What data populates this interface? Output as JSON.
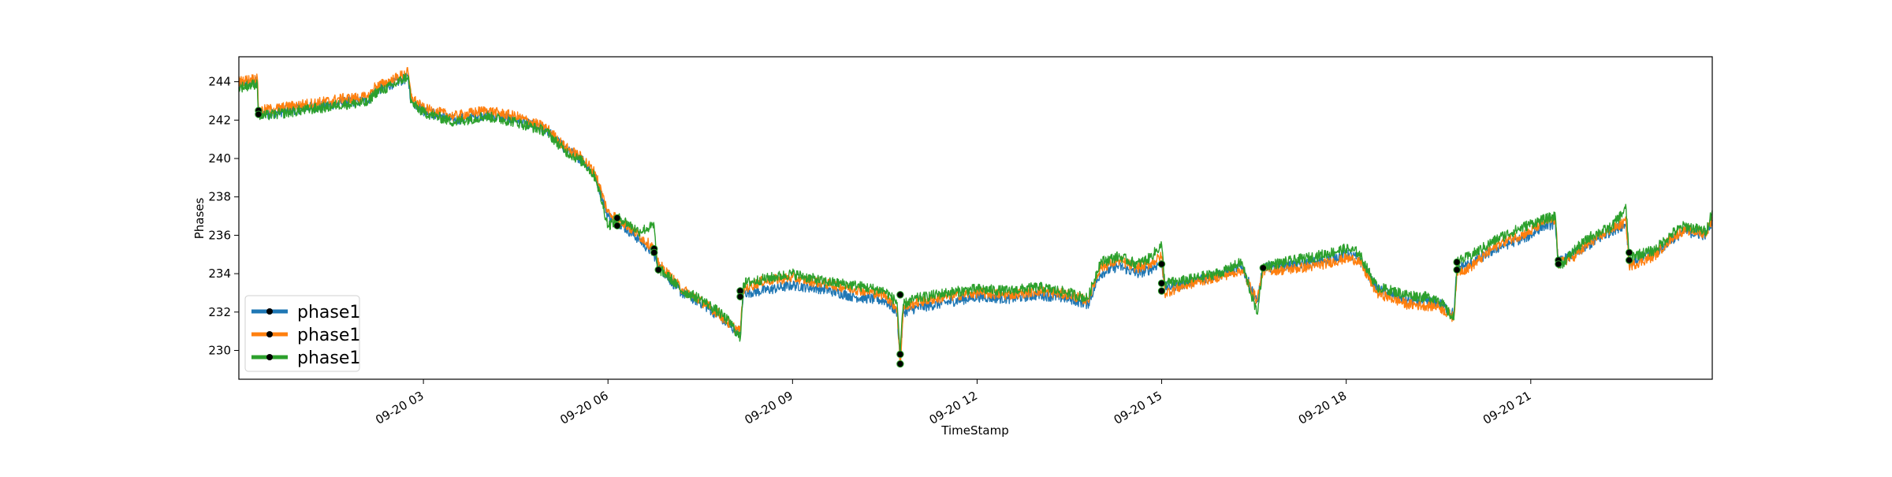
{
  "chart_data": {
    "type": "line",
    "title": "",
    "xlabel": "TimeStamp",
    "ylabel": "Phases",
    "grid": false,
    "legend_position": "lower-left",
    "xlim": [
      0.0,
      23.95
    ],
    "ylim": [
      228.5,
      245.3
    ],
    "x_unit": "hours from 09-20 00:00",
    "x_ticks": [
      {
        "x": 3,
        "label": "09-20 03"
      },
      {
        "x": 6,
        "label": "09-20 06"
      },
      {
        "x": 9,
        "label": "09-20 09"
      },
      {
        "x": 12,
        "label": "09-20 12"
      },
      {
        "x": 15,
        "label": "09-20 15"
      },
      {
        "x": 18,
        "label": "09-20 18"
      },
      {
        "x": 21,
        "label": "09-20 21"
      }
    ],
    "y_ticks": [
      {
        "y": 230,
        "label": "230"
      },
      {
        "y": 232,
        "label": "232"
      },
      {
        "y": 234,
        "label": "234"
      },
      {
        "y": 236,
        "label": "236"
      },
      {
        "y": 238,
        "label": "238"
      },
      {
        "y": 240,
        "label": "240"
      },
      {
        "y": 242,
        "label": "242"
      },
      {
        "y": 244,
        "label": "244"
      }
    ],
    "series": [
      {
        "name": "phase1",
        "color": "#1f77b4",
        "points": [
          [
            0.0,
            243.8
          ],
          [
            0.3,
            244.0
          ],
          [
            0.32,
            242.3
          ],
          [
            0.6,
            242.4
          ],
          [
            1.0,
            242.6
          ],
          [
            1.5,
            242.8
          ],
          [
            1.6,
            242.9
          ],
          [
            2.1,
            243.0
          ],
          [
            2.2,
            243.5
          ],
          [
            2.5,
            243.9
          ],
          [
            2.75,
            244.2
          ],
          [
            2.8,
            243.0
          ],
          [
            3.0,
            242.5
          ],
          [
            3.5,
            242.0
          ],
          [
            4.0,
            242.3
          ],
          [
            4.5,
            242.0
          ],
          [
            5.0,
            241.5
          ],
          [
            5.3,
            240.5
          ],
          [
            5.6,
            239.9
          ],
          [
            5.8,
            239.0
          ],
          [
            6.0,
            237.0
          ],
          [
            6.2,
            236.6
          ],
          [
            6.5,
            235.8
          ],
          [
            6.75,
            235.0
          ],
          [
            6.8,
            234.5
          ],
          [
            7.0,
            233.7
          ],
          [
            7.2,
            233.0
          ],
          [
            7.5,
            232.5
          ],
          [
            7.8,
            231.8
          ],
          [
            8.0,
            231.2
          ],
          [
            8.15,
            230.9
          ],
          [
            8.2,
            233.0
          ],
          [
            8.5,
            233.1
          ],
          [
            9.0,
            233.4
          ],
          [
            9.5,
            233.2
          ],
          [
            10.0,
            232.8
          ],
          [
            10.5,
            232.6
          ],
          [
            10.7,
            232.0
          ],
          [
            10.75,
            229.3
          ],
          [
            10.8,
            232.0
          ],
          [
            11.0,
            232.2
          ],
          [
            11.5,
            232.5
          ],
          [
            12.0,
            232.8
          ],
          [
            12.5,
            232.7
          ],
          [
            13.0,
            232.9
          ],
          [
            13.5,
            232.7
          ],
          [
            13.8,
            232.4
          ],
          [
            14.0,
            234.0
          ],
          [
            14.3,
            234.4
          ],
          [
            14.6,
            234.0
          ],
          [
            14.8,
            234.2
          ],
          [
            15.0,
            234.6
          ],
          [
            15.05,
            233.3
          ],
          [
            15.3,
            233.4
          ],
          [
            15.6,
            233.7
          ],
          [
            16.0,
            234.0
          ],
          [
            16.3,
            234.4
          ],
          [
            16.55,
            232.5
          ],
          [
            16.65,
            234.3
          ],
          [
            17.0,
            234.4
          ],
          [
            17.5,
            234.6
          ],
          [
            18.0,
            235.0
          ],
          [
            18.2,
            234.8
          ],
          [
            18.5,
            233.2
          ],
          [
            19.0,
            232.6
          ],
          [
            19.5,
            232.5
          ],
          [
            19.75,
            231.9
          ],
          [
            19.8,
            234.3
          ],
          [
            20.0,
            234.5
          ],
          [
            20.5,
            235.4
          ],
          [
            21.0,
            236.0
          ],
          [
            21.2,
            236.5
          ],
          [
            21.4,
            236.6
          ],
          [
            21.45,
            234.6
          ],
          [
            21.7,
            235.0
          ],
          [
            22.0,
            235.6
          ],
          [
            22.3,
            236.2
          ],
          [
            22.55,
            236.6
          ],
          [
            22.6,
            234.6
          ],
          [
            23.0,
            235.0
          ],
          [
            23.3,
            235.8
          ],
          [
            23.5,
            236.2
          ],
          [
            23.85,
            236.0
          ],
          [
            23.95,
            236.8
          ]
        ]
      },
      {
        "name": "phase1",
        "color": "#ff7f0e",
        "points": [
          [
            0.0,
            244.0
          ],
          [
            0.3,
            244.2
          ],
          [
            0.32,
            242.5
          ],
          [
            0.6,
            242.6
          ],
          [
            1.0,
            242.8
          ],
          [
            1.5,
            243.0
          ],
          [
            1.6,
            243.1
          ],
          [
            2.1,
            243.2
          ],
          [
            2.2,
            243.7
          ],
          [
            2.5,
            244.1
          ],
          [
            2.75,
            244.5
          ],
          [
            2.8,
            243.2
          ],
          [
            3.0,
            242.6
          ],
          [
            3.5,
            242.2
          ],
          [
            4.0,
            242.5
          ],
          [
            4.5,
            242.2
          ],
          [
            5.0,
            241.6
          ],
          [
            5.3,
            240.6
          ],
          [
            5.6,
            240.0
          ],
          [
            5.8,
            239.2
          ],
          [
            6.0,
            237.2
          ],
          [
            6.2,
            236.8
          ],
          [
            6.5,
            236.0
          ],
          [
            6.75,
            235.3
          ],
          [
            6.8,
            234.6
          ],
          [
            7.0,
            233.9
          ],
          [
            7.2,
            233.2
          ],
          [
            7.5,
            232.6
          ],
          [
            7.8,
            231.9
          ],
          [
            8.0,
            231.3
          ],
          [
            8.15,
            231.0
          ],
          [
            8.2,
            233.2
          ],
          [
            8.5,
            233.6
          ],
          [
            9.0,
            233.8
          ],
          [
            9.5,
            233.5
          ],
          [
            10.0,
            233.2
          ],
          [
            10.5,
            232.9
          ],
          [
            10.7,
            232.2
          ],
          [
            10.75,
            229.2
          ],
          [
            10.8,
            232.2
          ],
          [
            11.0,
            232.5
          ],
          [
            11.5,
            232.8
          ],
          [
            12.0,
            233.0
          ],
          [
            12.5,
            232.9
          ],
          [
            13.0,
            233.1
          ],
          [
            13.5,
            232.9
          ],
          [
            13.8,
            232.6
          ],
          [
            14.0,
            234.3
          ],
          [
            14.3,
            234.7
          ],
          [
            14.6,
            234.3
          ],
          [
            14.8,
            234.5
          ],
          [
            15.0,
            234.9
          ],
          [
            15.05,
            233.0
          ],
          [
            15.3,
            233.3
          ],
          [
            15.6,
            233.6
          ],
          [
            16.0,
            233.9
          ],
          [
            16.3,
            234.2
          ],
          [
            16.55,
            232.6
          ],
          [
            16.65,
            234.2
          ],
          [
            17.0,
            234.2
          ],
          [
            17.5,
            234.4
          ],
          [
            18.0,
            234.8
          ],
          [
            18.2,
            234.7
          ],
          [
            18.5,
            233.0
          ],
          [
            19.0,
            232.4
          ],
          [
            19.5,
            232.3
          ],
          [
            19.75,
            231.7
          ],
          [
            19.8,
            234.1
          ],
          [
            20.0,
            234.3
          ],
          [
            20.5,
            235.6
          ],
          [
            21.0,
            236.2
          ],
          [
            21.2,
            236.7
          ],
          [
            21.4,
            236.8
          ],
          [
            21.45,
            234.5
          ],
          [
            21.7,
            234.9
          ],
          [
            22.0,
            235.7
          ],
          [
            22.3,
            236.3
          ],
          [
            22.55,
            236.7
          ],
          [
            22.6,
            234.4
          ],
          [
            23.0,
            234.9
          ],
          [
            23.3,
            235.9
          ],
          [
            23.5,
            236.3
          ],
          [
            23.85,
            236.1
          ],
          [
            23.95,
            236.9
          ]
        ]
      },
      {
        "name": "phase1",
        "color": "#2ca02c",
        "points": [
          [
            0.0,
            243.7
          ],
          [
            0.3,
            243.9
          ],
          [
            0.32,
            242.2
          ],
          [
            0.6,
            242.3
          ],
          [
            1.0,
            242.5
          ],
          [
            1.5,
            242.7
          ],
          [
            1.6,
            242.8
          ],
          [
            2.1,
            242.9
          ],
          [
            2.2,
            243.4
          ],
          [
            2.5,
            243.8
          ],
          [
            2.75,
            244.3
          ],
          [
            2.8,
            242.9
          ],
          [
            3.0,
            242.4
          ],
          [
            3.5,
            241.9
          ],
          [
            4.0,
            242.2
          ],
          [
            4.5,
            241.9
          ],
          [
            5.0,
            241.4
          ],
          [
            5.3,
            240.4
          ],
          [
            5.6,
            239.8
          ],
          [
            5.8,
            239.0
          ],
          [
            6.0,
            236.5
          ],
          [
            6.2,
            236.9
          ],
          [
            6.5,
            236.2
          ],
          [
            6.75,
            236.5
          ],
          [
            6.8,
            234.3
          ],
          [
            7.0,
            233.8
          ],
          [
            7.2,
            233.1
          ],
          [
            7.5,
            232.7
          ],
          [
            7.8,
            232.0
          ],
          [
            8.0,
            231.4
          ],
          [
            8.15,
            230.6
          ],
          [
            8.2,
            233.5
          ],
          [
            8.5,
            233.7
          ],
          [
            9.0,
            234.0
          ],
          [
            9.5,
            233.6
          ],
          [
            10.0,
            233.4
          ],
          [
            10.5,
            233.1
          ],
          [
            10.7,
            232.5
          ],
          [
            10.75,
            229.8
          ],
          [
            10.8,
            232.4
          ],
          [
            11.0,
            232.7
          ],
          [
            11.5,
            233.0
          ],
          [
            12.0,
            233.2
          ],
          [
            12.5,
            233.1
          ],
          [
            13.0,
            233.3
          ],
          [
            13.5,
            233.0
          ],
          [
            13.8,
            232.7
          ],
          [
            14.0,
            234.6
          ],
          [
            14.3,
            234.9
          ],
          [
            14.6,
            234.5
          ],
          [
            14.8,
            234.8
          ],
          [
            15.0,
            235.5
          ],
          [
            15.05,
            233.5
          ],
          [
            15.3,
            233.6
          ],
          [
            15.6,
            233.8
          ],
          [
            16.0,
            234.1
          ],
          [
            16.3,
            234.6
          ],
          [
            16.55,
            231.9
          ],
          [
            16.65,
            234.4
          ],
          [
            17.0,
            234.6
          ],
          [
            17.5,
            234.9
          ],
          [
            18.0,
            235.3
          ],
          [
            18.2,
            235.1
          ],
          [
            18.5,
            233.3
          ],
          [
            19.0,
            232.9
          ],
          [
            19.5,
            232.7
          ],
          [
            19.75,
            231.6
          ],
          [
            19.8,
            234.6
          ],
          [
            20.0,
            234.9
          ],
          [
            20.5,
            235.9
          ],
          [
            21.0,
            236.6
          ],
          [
            21.2,
            236.8
          ],
          [
            21.4,
            237.0
          ],
          [
            21.45,
            234.3
          ],
          [
            21.7,
            235.2
          ],
          [
            22.0,
            236.0
          ],
          [
            22.3,
            236.4
          ],
          [
            22.55,
            237.4
          ],
          [
            22.6,
            234.9
          ],
          [
            23.0,
            235.2
          ],
          [
            23.3,
            236.1
          ],
          [
            23.5,
            236.5
          ],
          [
            23.85,
            236.2
          ],
          [
            23.95,
            237.3
          ]
        ]
      }
    ],
    "markers": [
      {
        "x": 0.32,
        "y": 242.5
      },
      {
        "x": 0.32,
        "y": 242.3
      },
      {
        "x": 6.15,
        "y": 236.9
      },
      {
        "x": 6.15,
        "y": 236.5
      },
      {
        "x": 6.75,
        "y": 235.3
      },
      {
        "x": 6.75,
        "y": 235.1
      },
      {
        "x": 6.82,
        "y": 234.2
      },
      {
        "x": 8.15,
        "y": 233.1
      },
      {
        "x": 8.15,
        "y": 232.8
      },
      {
        "x": 10.75,
        "y": 232.9
      },
      {
        "x": 10.75,
        "y": 229.8
      },
      {
        "x": 10.75,
        "y": 229.3
      },
      {
        "x": 15.0,
        "y": 234.5
      },
      {
        "x": 15.0,
        "y": 233.5
      },
      {
        "x": 15.0,
        "y": 233.1
      },
      {
        "x": 16.65,
        "y": 234.3
      },
      {
        "x": 19.8,
        "y": 234.6
      },
      {
        "x": 19.8,
        "y": 234.2
      },
      {
        "x": 21.45,
        "y": 234.7
      },
      {
        "x": 21.45,
        "y": 234.5
      },
      {
        "x": 22.6,
        "y": 235.1
      },
      {
        "x": 22.6,
        "y": 234.7
      }
    ]
  }
}
